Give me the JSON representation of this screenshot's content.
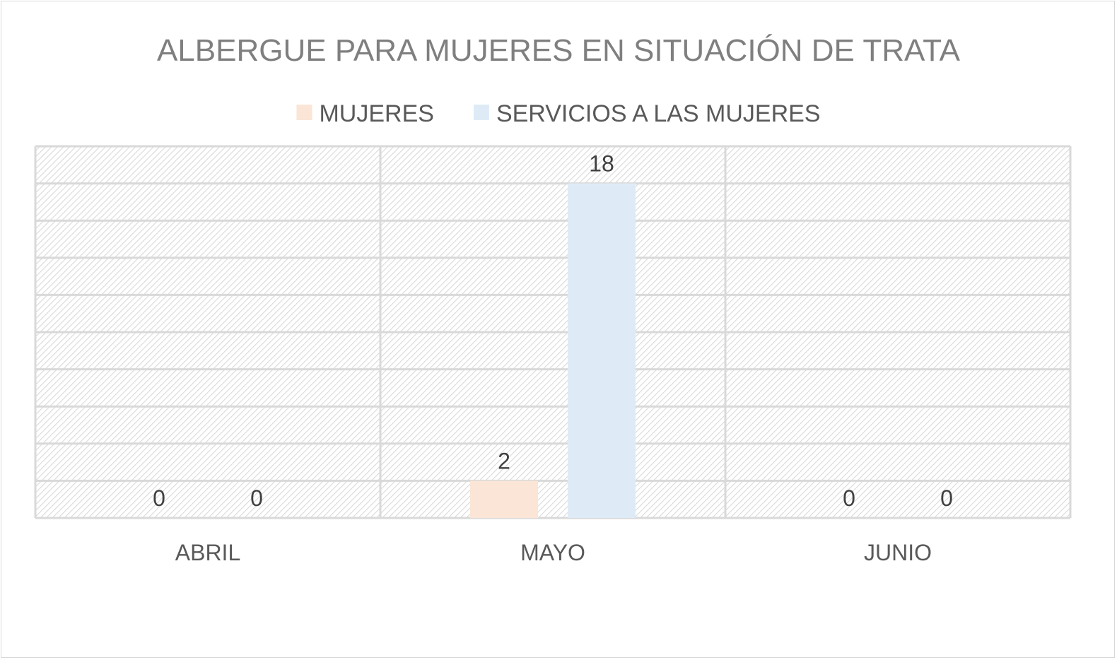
{
  "chart_data": {
    "type": "bar",
    "title": "ALBERGUE PARA MUJERES EN SITUACIÓN DE TRATA",
    "categories": [
      "ABRIL",
      "MAYO",
      "JUNIO"
    ],
    "series": [
      {
        "name": "MUJERES",
        "values": [
          0,
          2,
          0
        ],
        "color": "#fbe5d6"
      },
      {
        "name": "SERVICIOS A LAS MUJERES",
        "values": [
          0,
          18,
          0
        ],
        "color": "#deebf7"
      }
    ],
    "data_labels": true,
    "ylim": [
      0,
      20
    ],
    "grid": true,
    "legend": "top",
    "xlabel": "",
    "ylabel": ""
  }
}
